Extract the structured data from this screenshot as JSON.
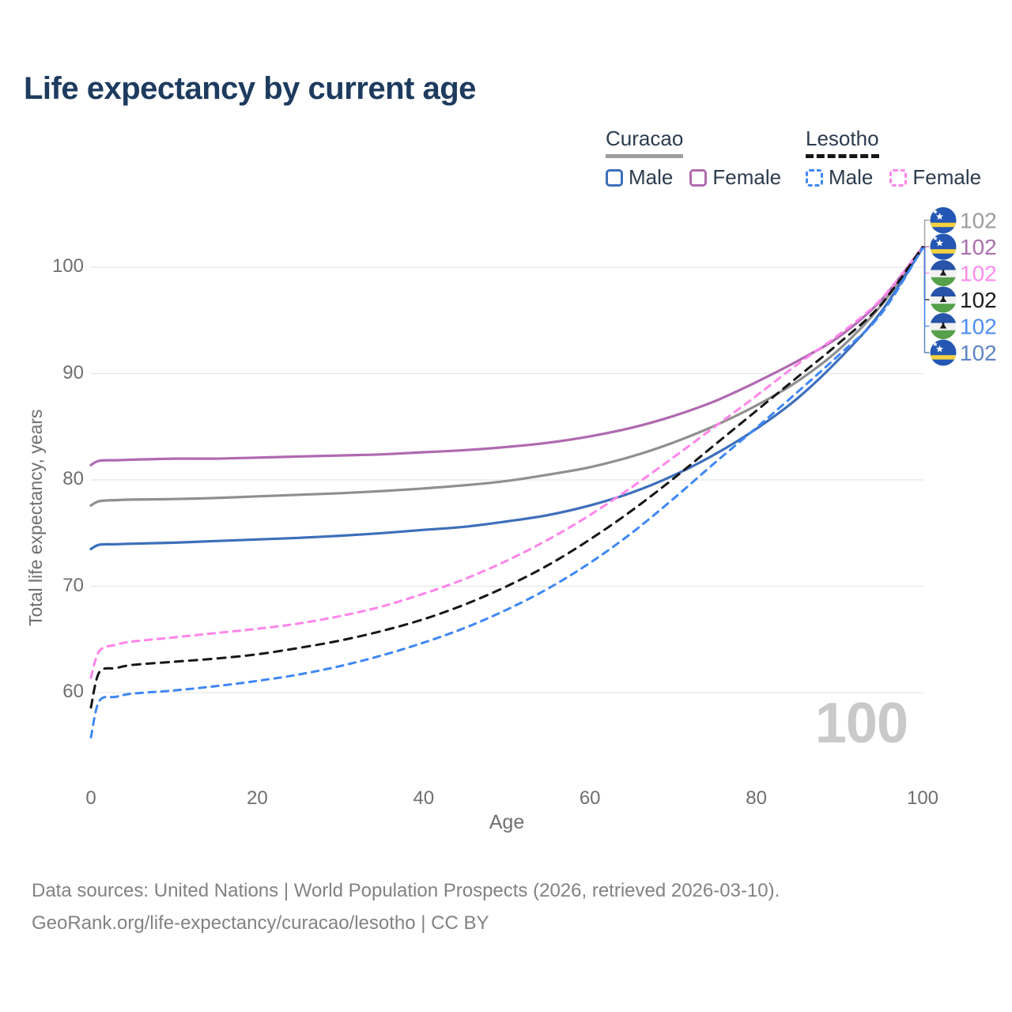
{
  "title": "Life expectancy by current age",
  "legend": {
    "groups": [
      {
        "country": "Curacao",
        "line_style": "solid",
        "underline_color": "#9e9e9e",
        "items": [
          {
            "label": "Male",
            "color": "#3d6fbb",
            "dash": false
          },
          {
            "label": "Female",
            "color": "#af6ab0",
            "dash": false
          }
        ]
      },
      {
        "country": "Lesotho",
        "line_style": "dashed",
        "underline_color": "#161616",
        "items": [
          {
            "label": "Male",
            "color": "#3f87f5",
            "dash": true
          },
          {
            "label": "Female",
            "color": "#ff85ea",
            "dash": true
          }
        ]
      }
    ]
  },
  "watermark": "100",
  "footer": {
    "line1": "Data sources: United Nations | World Population Prospects (2026, retrieved 2026-03-10).",
    "line2": "GeoRank.org/life-expectancy/curacao/lesotho | CC BY"
  },
  "chart_data": {
    "type": "line",
    "title": "Life expectancy by current age",
    "xlabel": "Age",
    "ylabel": "Total life expectancy, years",
    "xlim": [
      0,
      100
    ],
    "ylim": [
      55,
      103
    ],
    "x_ticks": [
      0,
      20,
      40,
      60,
      80,
      100
    ],
    "y_ticks": [
      60,
      70,
      80,
      90,
      100
    ],
    "grid": "horizontal",
    "legend_position": "top-right",
    "x": [
      0,
      1,
      3,
      5,
      10,
      15,
      20,
      25,
      30,
      35,
      40,
      45,
      50,
      55,
      60,
      65,
      70,
      75,
      80,
      85,
      90,
      95,
      100
    ],
    "series": [
      {
        "key": "curacao_both",
        "name": "Curacao Both sexes",
        "country": "Curacao",
        "sex": "Both",
        "color": "#8f8f8f",
        "dash": false,
        "row": 0,
        "flag": "curacao",
        "end_label": "102",
        "end_label_color": "#9c9c9c",
        "values": [
          77.6,
          78.0,
          78.1,
          78.15,
          78.2,
          78.3,
          78.45,
          78.6,
          78.75,
          78.95,
          79.2,
          79.5,
          79.9,
          80.5,
          81.2,
          82.2,
          83.5,
          85.1,
          87.0,
          89.3,
          92.3,
          96.4,
          101.9
        ]
      },
      {
        "key": "curacao_female",
        "name": "Curacao Female",
        "country": "Curacao",
        "sex": "Female",
        "color": "#af6ab0",
        "dash": false,
        "row": 1,
        "flag": "curacao",
        "end_label": "102",
        "end_label_color": "#ab6fae",
        "values": [
          81.4,
          81.8,
          81.85,
          81.9,
          82.0,
          82.0,
          82.1,
          82.2,
          82.3,
          82.4,
          82.6,
          82.8,
          83.1,
          83.5,
          84.1,
          84.9,
          86.0,
          87.4,
          89.2,
          91.2,
          93.5,
          96.9,
          101.9
        ]
      },
      {
        "key": "curacao_male",
        "name": "Curacao Male",
        "country": "Curacao",
        "sex": "Male",
        "color": "#3d6fbb",
        "dash": false,
        "row": 5,
        "flag": "curacao",
        "end_label": "102",
        "end_label_color": "#5d84c6",
        "values": [
          73.5,
          73.9,
          73.95,
          74.0,
          74.1,
          74.25,
          74.4,
          74.55,
          74.75,
          75.0,
          75.3,
          75.6,
          76.1,
          76.7,
          77.6,
          78.8,
          80.4,
          82.4,
          84.8,
          87.7,
          91.4,
          95.8,
          101.8
        ]
      },
      {
        "key": "lesotho_female",
        "name": "Lesotho Female",
        "country": "Lesotho",
        "sex": "Female",
        "color": "#ff85ea",
        "dash": true,
        "row": 2,
        "flag": "lesotho",
        "end_label": "102",
        "end_label_color": "#ff8bee",
        "values": [
          61.4,
          63.9,
          64.5,
          64.8,
          65.2,
          65.6,
          66.0,
          66.5,
          67.2,
          68.1,
          69.3,
          70.7,
          72.4,
          74.4,
          76.7,
          79.3,
          82.1,
          85.0,
          87.9,
          90.9,
          93.7,
          97.0,
          101.9
        ]
      },
      {
        "key": "lesotho_both",
        "name": "Lesotho Both sexes",
        "country": "Lesotho",
        "sex": "Both",
        "color": "#161616",
        "dash": true,
        "row": 3,
        "flag": "lesotho",
        "end_label": "102",
        "end_label_color": "#1c1c1c",
        "values": [
          58.6,
          61.9,
          62.3,
          62.6,
          62.9,
          63.2,
          63.6,
          64.2,
          64.9,
          65.8,
          66.9,
          68.3,
          70.0,
          72.0,
          74.4,
          77.1,
          80.1,
          83.3,
          86.5,
          89.7,
          92.9,
          96.5,
          101.9
        ]
      },
      {
        "key": "lesotho_male",
        "name": "Lesotho Male",
        "country": "Lesotho",
        "sex": "Male",
        "color": "#3f87f5",
        "dash": true,
        "row": 4,
        "flag": "lesotho",
        "end_label": "102",
        "end_label_color": "#4f8ef2",
        "values": [
          55.8,
          59.2,
          59.6,
          59.9,
          60.2,
          60.6,
          61.1,
          61.7,
          62.5,
          63.5,
          64.7,
          66.1,
          67.8,
          69.8,
          72.2,
          75.0,
          78.2,
          81.6,
          84.9,
          88.3,
          91.8,
          95.6,
          101.8
        ]
      }
    ]
  }
}
